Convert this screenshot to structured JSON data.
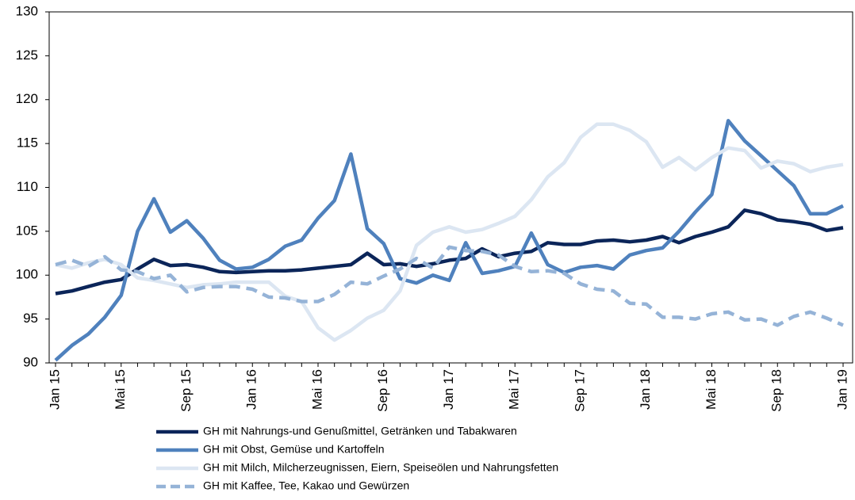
{
  "chart_data": {
    "type": "line",
    "categories": [
      "Jan 15",
      null,
      null,
      null,
      "Mai 15",
      null,
      null,
      null,
      "Sep 15",
      null,
      null,
      null,
      "Jan 16",
      null,
      null,
      null,
      "Mai 16",
      null,
      null,
      null,
      "Sep 16",
      null,
      null,
      null,
      "Jan 17",
      null,
      null,
      null,
      "Mai 17",
      null,
      null,
      null,
      "Sep 17",
      null,
      null,
      null,
      "Jan 18",
      null,
      null,
      null,
      "Mai 18",
      null,
      null,
      null,
      "Sep 18",
      null,
      null,
      null,
      "Jan 19"
    ],
    "series": [
      {
        "name": "GH mit Nahrungs-und Genußmittel, Getränken und Tabakwaren",
        "color": "#0b2559",
        "dashed": false,
        "values": [
          97.9,
          98.2,
          98.7,
          99.2,
          99.5,
          100.7,
          101.8,
          101.1,
          101.2,
          100.9,
          100.4,
          100.3,
          100.4,
          100.5,
          100.5,
          100.6,
          100.8,
          101.0,
          101.2,
          102.5,
          101.2,
          101.3,
          101.0,
          101.3,
          101.7,
          101.9,
          103.0,
          102.1,
          102.5,
          102.7,
          103.7,
          103.5,
          103.5,
          103.9,
          104.0,
          103.8,
          104.0,
          104.4,
          103.7,
          104.4,
          104.9,
          105.5,
          107.4,
          107.0,
          106.3,
          106.1,
          105.8,
          105.1,
          105.4
        ]
      },
      {
        "name": "GH mit Obst, Gemüse und Kartoffeln",
        "color": "#4f81bd",
        "dashed": false,
        "values": [
          90.3,
          92.0,
          93.3,
          95.2,
          97.7,
          105.0,
          108.7,
          104.9,
          106.2,
          104.2,
          101.7,
          100.7,
          100.9,
          101.8,
          103.3,
          104.0,
          106.5,
          108.5,
          113.8,
          105.3,
          103.6,
          99.6,
          99.1,
          100.0,
          99.4,
          103.7,
          100.2,
          100.5,
          101.0,
          104.8,
          101.2,
          100.3,
          100.9,
          101.1,
          100.7,
          102.3,
          102.8,
          103.1,
          105.0,
          107.2,
          109.2,
          117.6,
          115.3,
          113.6,
          111.9,
          110.2,
          107.0,
          107.0,
          107.9
        ]
      },
      {
        "name": "GH mit Milch, Milcherzeugnissen, Eiern, Speiseölen und Nahrungsfetten",
        "color": "#dce6f2",
        "dashed": false,
        "values": [
          101.2,
          100.8,
          101.4,
          101.8,
          101.2,
          99.7,
          99.4,
          99.0,
          98.6,
          98.9,
          99.0,
          99.2,
          99.2,
          99.2,
          97.6,
          97.0,
          94.0,
          92.6,
          93.7,
          95.1,
          96.0,
          98.2,
          103.4,
          104.9,
          105.5,
          104.9,
          105.2,
          105.9,
          106.7,
          108.6,
          111.2,
          112.8,
          115.7,
          117.2,
          117.2,
          116.5,
          115.2,
          112.3,
          113.4,
          112.0,
          113.4,
          114.5,
          114.2,
          112.2,
          113.0,
          112.7,
          111.8,
          112.3,
          112.6
        ]
      },
      {
        "name": "GH mit Kaffee, Tee, Kakao und Gewürzen",
        "color": "#95b3d7",
        "dashed": true,
        "values": [
          101.2,
          101.7,
          101.0,
          102.1,
          100.6,
          100.4,
          99.6,
          100.0,
          98.1,
          98.6,
          98.7,
          98.7,
          98.4,
          97.5,
          97.4,
          97.0,
          97.0,
          97.8,
          99.2,
          99.0,
          99.9,
          100.7,
          101.9,
          100.8,
          103.2,
          102.8,
          102.7,
          102.3,
          101.0,
          100.4,
          100.5,
          100.2,
          99.0,
          98.4,
          98.2,
          96.8,
          96.7,
          95.2,
          95.2,
          95.0,
          95.6,
          95.8,
          94.9,
          95.0,
          94.3,
          95.3,
          95.8,
          95.1,
          94.3
        ]
      }
    ],
    "ylim": [
      90,
      130
    ],
    "yticks": [
      90,
      95,
      100,
      105,
      110,
      115,
      120,
      125,
      130
    ],
    "grid": false,
    "legend": "bottom"
  }
}
